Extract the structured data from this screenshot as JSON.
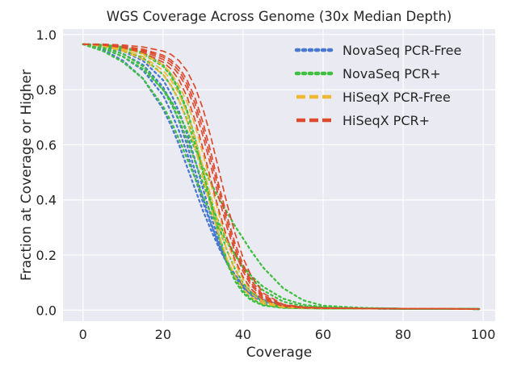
{
  "chart_data": {
    "type": "line",
    "title": "WGS Coverage Across Genome (30x Median Depth)",
    "xlabel": "Coverage",
    "ylabel": "Fraction at Coverage or Higher",
    "xlim": [
      -5,
      103
    ],
    "ylim": [
      -0.04,
      1.02
    ],
    "xticks": [
      0,
      20,
      40,
      60,
      80,
      100
    ],
    "yticks": [
      0.0,
      0.2,
      0.4,
      0.6,
      0.8,
      1.0
    ],
    "xtick_labels": [
      "0",
      "20",
      "40",
      "60",
      "80",
      "100"
    ],
    "ytick_labels": [
      "0.0",
      "0.2",
      "0.4",
      "0.6",
      "0.8",
      "1.0"
    ],
    "grid": true,
    "legend_position": "top-right",
    "x": [
      0,
      5,
      10,
      15,
      20,
      22,
      24,
      26,
      28,
      30,
      32,
      34,
      36,
      38,
      40,
      42,
      45,
      50,
      55,
      60,
      70,
      80,
      90,
      99
    ],
    "groups": [
      {
        "name": "NovaSeq PCR-Free",
        "color": "#4878d0",
        "dash": "dotted",
        "series": [
          {
            "values": [
              0.965,
              0.945,
              0.905,
              0.84,
              0.73,
              0.67,
              0.6,
              0.52,
              0.44,
              0.36,
              0.29,
              0.225,
              0.17,
              0.125,
              0.09,
              0.063,
              0.037,
              0.017,
              0.01,
              0.008,
              0.006,
              0.005,
              0.005,
              0.004
            ]
          },
          {
            "values": [
              0.965,
              0.95,
              0.92,
              0.87,
              0.78,
              0.72,
              0.65,
              0.57,
              0.48,
              0.39,
              0.31,
              0.235,
              0.175,
              0.128,
              0.092,
              0.065,
              0.038,
              0.017,
              0.01,
              0.008,
              0.006,
              0.005,
              0.005,
              0.004
            ]
          },
          {
            "values": [
              0.965,
              0.955,
              0.93,
              0.89,
              0.81,
              0.755,
              0.685,
              0.6,
              0.505,
              0.405,
              0.315,
              0.235,
              0.17,
              0.12,
              0.083,
              0.057,
              0.032,
              0.014,
              0.009,
              0.007,
              0.006,
              0.005,
              0.005,
              0.004
            ]
          },
          {
            "values": [
              0.965,
              0.958,
              0.94,
              0.905,
              0.835,
              0.785,
              0.72,
              0.64,
              0.545,
              0.44,
              0.34,
              0.25,
              0.178,
              0.122,
              0.082,
              0.054,
              0.029,
              0.012,
              0.008,
              0.007,
              0.006,
              0.005,
              0.005,
              0.004
            ]
          }
        ]
      },
      {
        "name": "NovaSeq PCR+",
        "color": "#3fbf3f",
        "dash": "dotted",
        "series": [
          {
            "values": [
              0.965,
              0.94,
              0.9,
              0.84,
              0.74,
              0.685,
              0.62,
              0.55,
              0.48,
              0.41,
              0.35,
              0.295,
              0.245,
              0.2,
              0.16,
              0.125,
              0.085,
              0.042,
              0.02,
              0.011,
              0.007,
              0.005,
              0.005,
              0.004
            ]
          },
          {
            "values": [
              0.965,
              0.955,
              0.93,
              0.885,
              0.8,
              0.75,
              0.69,
              0.62,
              0.54,
              0.46,
              0.385,
              0.315,
              0.255,
              0.2,
              0.155,
              0.115,
              0.072,
              0.031,
              0.014,
              0.009,
              0.006,
              0.005,
              0.005,
              0.004
            ]
          },
          {
            "values": [
              0.965,
              0.96,
              0.945,
              0.915,
              0.855,
              0.815,
              0.76,
              0.69,
              0.6,
              0.5,
              0.4,
              0.3,
              0.215,
              0.148,
              0.098,
              0.063,
              0.032,
              0.012,
              0.008,
              0.007,
              0.006,
              0.005,
              0.005,
              0.004
            ]
          },
          {
            "values": [
              0.965,
              0.962,
              0.952,
              0.93,
              0.885,
              0.85,
              0.795,
              0.72,
              0.62,
              0.5,
              0.38,
              0.27,
              0.18,
              0.115,
              0.07,
              0.042,
              0.02,
              0.009,
              0.007,
              0.006,
              0.006,
              0.005,
              0.005,
              0.004
            ]
          },
          {
            "values": [
              0.965,
              0.95,
              0.92,
              0.875,
              0.8,
              0.76,
              0.71,
              0.65,
              0.585,
              0.52,
              0.46,
              0.405,
              0.355,
              0.305,
              0.26,
              0.215,
              0.155,
              0.08,
              0.036,
              0.016,
              0.008,
              0.005,
              0.005,
              0.004
            ]
          },
          {
            "values": [
              0.965,
              0.963,
              0.955,
              0.935,
              0.89,
              0.855,
              0.8,
              0.725,
              0.625,
              0.505,
              0.38,
              0.265,
              0.17,
              0.105,
              0.062,
              0.036,
              0.017,
              0.008,
              0.007,
              0.006,
              0.006,
              0.005,
              0.005,
              0.004
            ]
          }
        ]
      },
      {
        "name": "HiSeqX PCR-Free",
        "color": "#f0b830",
        "dash": "dashed",
        "series": [
          {
            "values": [
              0.965,
              0.958,
              0.94,
              0.91,
              0.855,
              0.815,
              0.76,
              0.685,
              0.59,
              0.48,
              0.37,
              0.27,
              0.185,
              0.122,
              0.078,
              0.048,
              0.024,
              0.01,
              0.007,
              0.006,
              0.006,
              0.005,
              0.005,
              0.004
            ]
          },
          {
            "values": [
              0.965,
              0.96,
              0.945,
              0.92,
              0.87,
              0.835,
              0.785,
              0.715,
              0.625,
              0.52,
              0.41,
              0.305,
              0.215,
              0.145,
              0.094,
              0.06,
              0.03,
              0.012,
              0.008,
              0.007,
              0.006,
              0.005,
              0.005,
              0.004
            ]
          },
          {
            "values": [
              0.965,
              0.962,
              0.95,
              0.93,
              0.89,
              0.86,
              0.815,
              0.755,
              0.67,
              0.565,
              0.455,
              0.345,
              0.25,
              0.17,
              0.112,
              0.072,
              0.036,
              0.014,
              0.009,
              0.007,
              0.006,
              0.005,
              0.005,
              0.004
            ]
          }
        ]
      },
      {
        "name": "HiSeqX PCR+",
        "color": "#dd4a2c",
        "dash": "dashed",
        "series": [
          {
            "values": [
              0.965,
              0.962,
              0.952,
              0.935,
              0.9,
              0.875,
              0.835,
              0.775,
              0.69,
              0.585,
              0.47,
              0.36,
              0.262,
              0.182,
              0.12,
              0.077,
              0.038,
              0.014,
              0.008,
              0.007,
              0.006,
              0.005,
              0.005,
              0.004
            ]
          },
          {
            "values": [
              0.965,
              0.963,
              0.955,
              0.94,
              0.91,
              0.89,
              0.855,
              0.805,
              0.73,
              0.63,
              0.52,
              0.405,
              0.3,
              0.21,
              0.14,
              0.09,
              0.044,
              0.016,
              0.009,
              0.007,
              0.006,
              0.005,
              0.005,
              0.004
            ]
          },
          {
            "values": [
              0.965,
              0.964,
              0.958,
              0.947,
              0.925,
              0.908,
              0.88,
              0.835,
              0.77,
              0.68,
              0.57,
              0.45,
              0.34,
              0.242,
              0.165,
              0.108,
              0.054,
              0.019,
              0.01,
              0.008,
              0.006,
              0.005,
              0.005,
              0.004
            ]
          },
          {
            "values": [
              0.965,
              0.965,
              0.962,
              0.955,
              0.94,
              0.928,
              0.905,
              0.868,
              0.81,
              0.73,
              0.625,
              0.505,
              0.385,
              0.278,
              0.19,
              0.125,
              0.062,
              0.021,
              0.011,
              0.008,
              0.006,
              0.005,
              0.005,
              0.004
            ]
          },
          {
            "values": [
              0.965,
              0.963,
              0.957,
              0.944,
              0.918,
              0.9,
              0.868,
              0.82,
              0.75,
              0.655,
              0.545,
              0.43,
              0.32,
              0.225,
              0.152,
              0.098,
              0.048,
              0.017,
              0.009,
              0.007,
              0.006,
              0.005,
              0.005,
              0.004
            ]
          }
        ]
      }
    ]
  }
}
